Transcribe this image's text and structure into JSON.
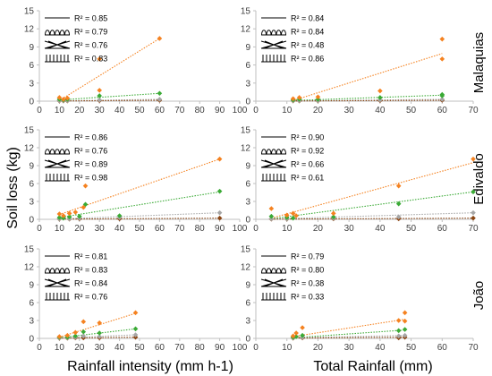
{
  "figure": {
    "ylabel": "Soil loss (kg)",
    "xlabels": [
      "Rainfall intensity (mm h-1)",
      "Total Rainfall (mm)"
    ],
    "site_labels": [
      "Malaquias",
      "Edivaldo",
      "João"
    ]
  },
  "colors": {
    "orange": "#F58220",
    "green": "#3AAA35",
    "gray": "#A6A6A6",
    "brown": "#8B4513",
    "axis": "#BFBFBF",
    "text": "#000000"
  },
  "chart_data": [
    {
      "type": "scatter",
      "site": "Malaquias",
      "xlabel": "Rainfall intensity (mm h-1)",
      "xlim": [
        0,
        100
      ],
      "ylim": [
        0,
        15
      ],
      "xticks": [
        0,
        10,
        20,
        30,
        40,
        50,
        60,
        70,
        80,
        90,
        100
      ],
      "yticks": [
        0,
        3,
        6,
        9,
        12,
        15
      ],
      "legend": {
        "placement": "top-left",
        "r2": [
          "R² = 0.85",
          "R² = 0.79",
          "R² = 0.76",
          "R² = 0.83"
        ]
      },
      "series": [
        {
          "color": "orange",
          "x": [
            10,
            12,
            14,
            30,
            30,
            60
          ],
          "y": [
            0.6,
            0.3,
            0.5,
            7.0,
            1.8,
            10.4
          ],
          "trend": [
            [
              10,
              0.1
            ],
            [
              60,
              10.4
            ]
          ]
        },
        {
          "color": "green",
          "x": [
            10,
            12,
            14,
            30,
            60
          ],
          "y": [
            0.3,
            0.2,
            0.3,
            0.9,
            1.3
          ],
          "trend": [
            [
              10,
              0.2
            ],
            [
              60,
              1.3
            ]
          ]
        },
        {
          "color": "gray",
          "x": [
            10,
            12,
            14,
            30,
            60
          ],
          "y": [
            0.1,
            0.1,
            0.1,
            0.2,
            0.3
          ],
          "trend": [
            [
              10,
              0.05
            ],
            [
              60,
              0.3
            ]
          ]
        },
        {
          "color": "brown",
          "x": [
            10,
            12,
            14,
            30,
            60
          ],
          "y": [
            0.05,
            0.05,
            0.05,
            0.1,
            0.15
          ],
          "trend": [
            [
              10,
              0.03
            ],
            [
              60,
              0.15
            ]
          ]
        }
      ]
    },
    {
      "type": "scatter",
      "site": "Malaquias",
      "xlabel": "Total Rainfall (mm)",
      "xlim": [
        0,
        70
      ],
      "ylim": [
        0,
        15
      ],
      "xticks": [
        0,
        10,
        20,
        30,
        40,
        50,
        60,
        70
      ],
      "yticks": [
        0,
        3,
        6,
        9,
        12,
        15
      ],
      "legend": {
        "placement": "top-left",
        "r2": [
          "R² = 0.84",
          "R² = 0.84",
          "R² = 0.48",
          "R² = 0.86"
        ]
      },
      "series": [
        {
          "color": "orange",
          "x": [
            12,
            14,
            20,
            40,
            60,
            60
          ],
          "y": [
            0.4,
            0.6,
            0.7,
            1.7,
            10.3,
            7.0
          ],
          "trend": [
            [
              12,
              0.1
            ],
            [
              60,
              7.9
            ]
          ]
        },
        {
          "color": "green",
          "x": [
            12,
            14,
            20,
            40,
            60,
            60
          ],
          "y": [
            0.2,
            0.3,
            0.3,
            0.6,
            1.1,
            0.9
          ],
          "trend": [
            [
              12,
              0.1
            ],
            [
              60,
              1.0
            ]
          ]
        },
        {
          "color": "gray",
          "x": [
            12,
            14,
            20,
            40,
            60
          ],
          "y": [
            0.1,
            0.1,
            0.1,
            0.2,
            0.3
          ],
          "trend": [
            [
              12,
              0.05
            ],
            [
              60,
              0.3
            ]
          ]
        },
        {
          "color": "brown",
          "x": [
            12,
            14,
            20,
            40,
            60
          ],
          "y": [
            0.05,
            0.05,
            0.05,
            0.1,
            0.15
          ],
          "trend": [
            [
              12,
              0.03
            ],
            [
              60,
              0.15
            ]
          ]
        }
      ]
    },
    {
      "type": "scatter",
      "site": "Edivaldo",
      "xlabel": "Rainfall intensity (mm h-1)",
      "xlim": [
        0,
        100
      ],
      "ylim": [
        0,
        15
      ],
      "xticks": [
        0,
        10,
        20,
        30,
        40,
        50,
        60,
        70,
        80,
        90,
        100
      ],
      "yticks": [
        0,
        3,
        6,
        9,
        12,
        15
      ],
      "legend": {
        "placement": "top-left",
        "r2": [
          "R² = 0.86",
          "R² = 0.76",
          "R² = 0.89",
          "R² = 0.98"
        ]
      },
      "series": [
        {
          "color": "orange",
          "x": [
            10,
            12,
            15,
            18,
            22,
            23,
            90
          ],
          "y": [
            0.9,
            0.6,
            1.0,
            1.2,
            2.0,
            5.6,
            10.1
          ],
          "trend": [
            [
              10,
              0.8
            ],
            [
              90,
              10.1
            ]
          ]
        },
        {
          "color": "green",
          "x": [
            10,
            12,
            15,
            20,
            23,
            40,
            90
          ],
          "y": [
            0.3,
            0.2,
            0.4,
            0.5,
            2.5,
            0.6,
            4.7
          ],
          "trend": [
            [
              10,
              0.3
            ],
            [
              90,
              4.6
            ]
          ]
        },
        {
          "color": "gray",
          "x": [
            10,
            15,
            20,
            40,
            90
          ],
          "y": [
            0.1,
            0.1,
            0.2,
            0.3,
            1.1
          ],
          "trend": [
            [
              10,
              0.05
            ],
            [
              90,
              1.1
            ]
          ]
        },
        {
          "color": "brown",
          "x": [
            10,
            15,
            20,
            40,
            90
          ],
          "y": [
            0.05,
            0.05,
            0.1,
            0.1,
            0.2
          ],
          "trend": [
            [
              10,
              0.03
            ],
            [
              90,
              0.2
            ]
          ]
        }
      ]
    },
    {
      "type": "scatter",
      "site": "Edivaldo",
      "xlabel": "Total Rainfall (mm)",
      "xlim": [
        0,
        70
      ],
      "ylim": [
        0,
        15
      ],
      "xticks": [
        0,
        10,
        20,
        30,
        40,
        50,
        60,
        70
      ],
      "yticks": [
        0,
        3,
        6,
        9,
        12,
        15
      ],
      "legend": {
        "placement": "top-left",
        "r2": [
          "R² = 0.90",
          "R² = 0.92",
          "R² = 0.66",
          "R² = 0.61"
        ]
      },
      "series": [
        {
          "color": "orange",
          "x": [
            5,
            10,
            12,
            13,
            25,
            46,
            70
          ],
          "y": [
            1.8,
            0.7,
            1.0,
            0.6,
            1.0,
            5.6,
            10.1
          ],
          "trend": [
            [
              5,
              0.2
            ],
            [
              70,
              9.5
            ]
          ]
        },
        {
          "color": "green",
          "x": [
            5,
            10,
            12,
            25,
            46,
            70
          ],
          "y": [
            0.5,
            0.3,
            0.2,
            0.4,
            2.6,
            4.6
          ],
          "trend": [
            [
              5,
              0.1
            ],
            [
              70,
              4.6
            ]
          ]
        },
        {
          "color": "gray",
          "x": [
            5,
            10,
            25,
            46,
            70
          ],
          "y": [
            0.1,
            0.1,
            0.2,
            0.4,
            1.1
          ],
          "trend": [
            [
              5,
              0.05
            ],
            [
              70,
              1.1
            ]
          ]
        },
        {
          "color": "brown",
          "x": [
            5,
            10,
            25,
            46,
            70
          ],
          "y": [
            0.05,
            0.05,
            0.1,
            0.1,
            0.2
          ],
          "trend": [
            [
              5,
              0.03
            ],
            [
              70,
              0.2
            ]
          ]
        }
      ]
    },
    {
      "type": "scatter",
      "site": "João",
      "xlabel": "Rainfall intensity (mm h-1)",
      "xlim": [
        0,
        100
      ],
      "ylim": [
        0,
        15
      ],
      "xticks": [
        0,
        10,
        20,
        30,
        40,
        50,
        60,
        70,
        80,
        90,
        100
      ],
      "yticks": [
        0,
        3,
        6,
        9,
        12,
        15
      ],
      "legend": {
        "placement": "top-left",
        "r2": [
          "R² = 0.81",
          "R² = 0.83",
          "R² = 0.84",
          "R² = 0.76"
        ]
      },
      "series": [
        {
          "color": "orange",
          "x": [
            10,
            14,
            18,
            22,
            30,
            48
          ],
          "y": [
            0.3,
            0.5,
            1.0,
            2.8,
            2.6,
            4.3
          ],
          "trend": [
            [
              10,
              0.2
            ],
            [
              48,
              4.2
            ]
          ]
        },
        {
          "color": "green",
          "x": [
            10,
            14,
            18,
            22,
            30,
            48
          ],
          "y": [
            0.2,
            0.2,
            0.4,
            1.1,
            0.9,
            1.6
          ],
          "trend": [
            [
              10,
              0.1
            ],
            [
              48,
              1.6
            ]
          ]
        },
        {
          "color": "gray",
          "x": [
            10,
            14,
            18,
            22,
            30,
            48
          ],
          "y": [
            0.1,
            0.1,
            0.2,
            0.4,
            0.3,
            0.6
          ],
          "trend": [
            [
              10,
              0.05
            ],
            [
              48,
              0.6
            ]
          ]
        },
        {
          "color": "brown",
          "x": [
            10,
            14,
            18,
            22,
            30,
            48
          ],
          "y": [
            0.05,
            0.05,
            0.1,
            0.1,
            0.1,
            0.2
          ],
          "trend": [
            [
              10,
              0.03
            ],
            [
              48,
              0.2
            ]
          ]
        }
      ]
    },
    {
      "type": "scatter",
      "site": "João",
      "xlabel": "Total Rainfall (mm)",
      "xlim": [
        0,
        70
      ],
      "ylim": [
        0,
        15
      ],
      "xticks": [
        0,
        10,
        20,
        30,
        40,
        50,
        60,
        70
      ],
      "yticks": [
        0,
        3,
        6,
        9,
        12,
        15
      ],
      "legend": {
        "placement": "top-left",
        "r2": [
          "R² = 0.79",
          "R² = 0.80",
          "R² = 0.38",
          "R² = 0.33"
        ]
      },
      "series": [
        {
          "color": "orange",
          "x": [
            12,
            13,
            15,
            46,
            48,
            48
          ],
          "y": [
            0.4,
            0.9,
            1.8,
            3.0,
            4.3,
            2.9
          ],
          "trend": [
            [
              12,
              0.3
            ],
            [
              48,
              3.2
            ]
          ]
        },
        {
          "color": "green",
          "x": [
            12,
            13,
            15,
            46,
            48
          ],
          "y": [
            0.2,
            0.3,
            0.5,
            1.3,
            1.5
          ],
          "trend": [
            [
              12,
              0.1
            ],
            [
              48,
              1.4
            ]
          ]
        },
        {
          "color": "gray",
          "x": [
            12,
            15,
            46,
            48
          ],
          "y": [
            0.1,
            0.2,
            0.4,
            0.5
          ],
          "trend": [
            [
              12,
              0.1
            ],
            [
              48,
              0.5
            ]
          ]
        },
        {
          "color": "brown",
          "x": [
            12,
            15,
            46,
            48
          ],
          "y": [
            0.05,
            0.1,
            0.1,
            0.2
          ],
          "trend": [
            [
              12,
              0.05
            ],
            [
              48,
              0.2
            ]
          ]
        }
      ]
    }
  ]
}
